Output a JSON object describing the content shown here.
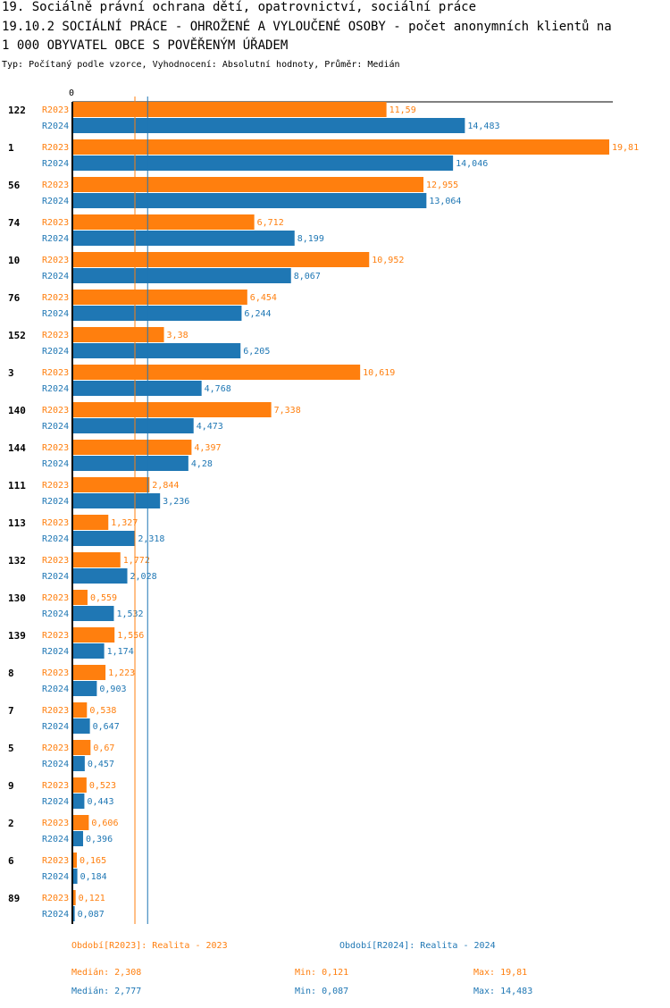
{
  "header": {
    "line1": "19. Sociálně právní ochrana dětí, opatrovnictví, sociální práce",
    "line2": "19.10.2 SOCIÁLNÍ PRÁCE - OHROŽENÉ A VYLOUČENÉ OSOBY - počet anonymních klientů na",
    "line3": "1 000 OBYVATEL OBCE S POVĚŘENÝM ÚŘADEM",
    "subtitle": "Typ: Počítaný podle vzorce, Vyhodnocení: Absolutní hodnoty, Průměr: Medián"
  },
  "colors": {
    "r2023": "#ff7f0e",
    "r2024": "#1f77b4"
  },
  "chart_data": {
    "type": "bar",
    "orientation": "horizontal",
    "axis_zero_label": "0",
    "xlim": [
      0,
      19.81
    ],
    "categories": [
      "122",
      "1",
      "56",
      "74",
      "10",
      "76",
      "152",
      "3",
      "140",
      "144",
      "111",
      "113",
      "132",
      "130",
      "139",
      "8",
      "7",
      "5",
      "9",
      "2",
      "6",
      "89"
    ],
    "series": [
      {
        "name": "R2023",
        "values": [
          11.59,
          19.81,
          12.955,
          6.712,
          10.952,
          6.454,
          3.38,
          10.619,
          7.338,
          4.397,
          2.844,
          1.327,
          1.772,
          0.559,
          1.556,
          1.223,
          0.538,
          0.67,
          0.523,
          0.606,
          0.165,
          0.121
        ],
        "labels": [
          "11,59",
          "19,81",
          "12,955",
          "6,712",
          "10,952",
          "6,454",
          "3,38",
          "10,619",
          "7,338",
          "4,397",
          "2,844",
          "1,327",
          "1,772",
          "0,559",
          "1,556",
          "1,223",
          "0,538",
          "0,67",
          "0,523",
          "0,606",
          "0,165",
          "0,121"
        ]
      },
      {
        "name": "R2024",
        "values": [
          14.483,
          14.046,
          13.064,
          8.199,
          8.067,
          6.244,
          6.205,
          4.768,
          4.473,
          4.28,
          3.236,
          2.318,
          2.028,
          1.532,
          1.174,
          0.903,
          0.647,
          0.457,
          0.443,
          0.396,
          0.184,
          0.087
        ],
        "labels": [
          "14,483",
          "14,046",
          "13,064",
          "8,199",
          "8,067",
          "6,244",
          "6,205",
          "4,768",
          "4,473",
          "4,28",
          "3,236",
          "2,318",
          "2,028",
          "1,532",
          "1,174",
          "0,903",
          "0,647",
          "0,457",
          "0,443",
          "0,396",
          "0,184",
          "0,087"
        ]
      }
    ],
    "medians": {
      "R2023": 2.308,
      "R2024": 2.777
    }
  },
  "legend": {
    "r2023": "Období[R2023]: Realita - 2023",
    "r2024": "Období[R2024]: Realita - 2024"
  },
  "stats": {
    "r2023": {
      "median": "Medián: 2,308",
      "min": "Min: 0,121",
      "max": "Max: 19,81"
    },
    "r2024": {
      "median": "Medián: 2,777",
      "min": "Min: 0,087",
      "max": "Max: 14,483"
    }
  }
}
